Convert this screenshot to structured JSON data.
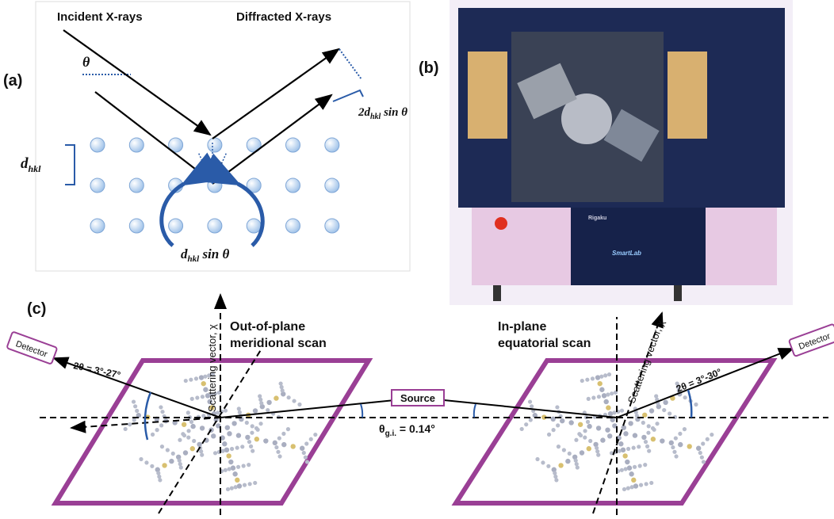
{
  "panel_a": {
    "label": "(a)",
    "incident": "Incident X-rays",
    "diffracted": "Diffracted X-rays",
    "theta_incident": "θ",
    "theta_left": "θ",
    "theta_right": "θ",
    "d_spacing": {
      "main": "d",
      "sub": "hkl"
    },
    "path_difference": {
      "main": "2d",
      "sub": "hkl",
      "tail": " sin θ"
    },
    "half_path": {
      "main": "d",
      "sub": "hkl",
      "tail": " sin θ"
    }
  },
  "panel_b": {
    "label": "(b)",
    "brand": "Rigaku",
    "model": "SmartLab"
  },
  "panel_c": {
    "label": "(c)",
    "left_axis": "Scattering vector, χ",
    "left_scan": [
      "Out-of-plane",
      "meridional scan"
    ],
    "right_scan": [
      "In-plane",
      "equatorial scan"
    ],
    "right_axis": "Scattering vector, χ",
    "left_detector": "Detector",
    "right_detector": "Detector",
    "left_range": "2θ = 3°-27°",
    "right_range": "2θ = 3°-30°",
    "source": "Source",
    "incidence": {
      "main": "θ",
      "sub": "g.i.",
      "tail": " = 0.14°"
    }
  }
}
